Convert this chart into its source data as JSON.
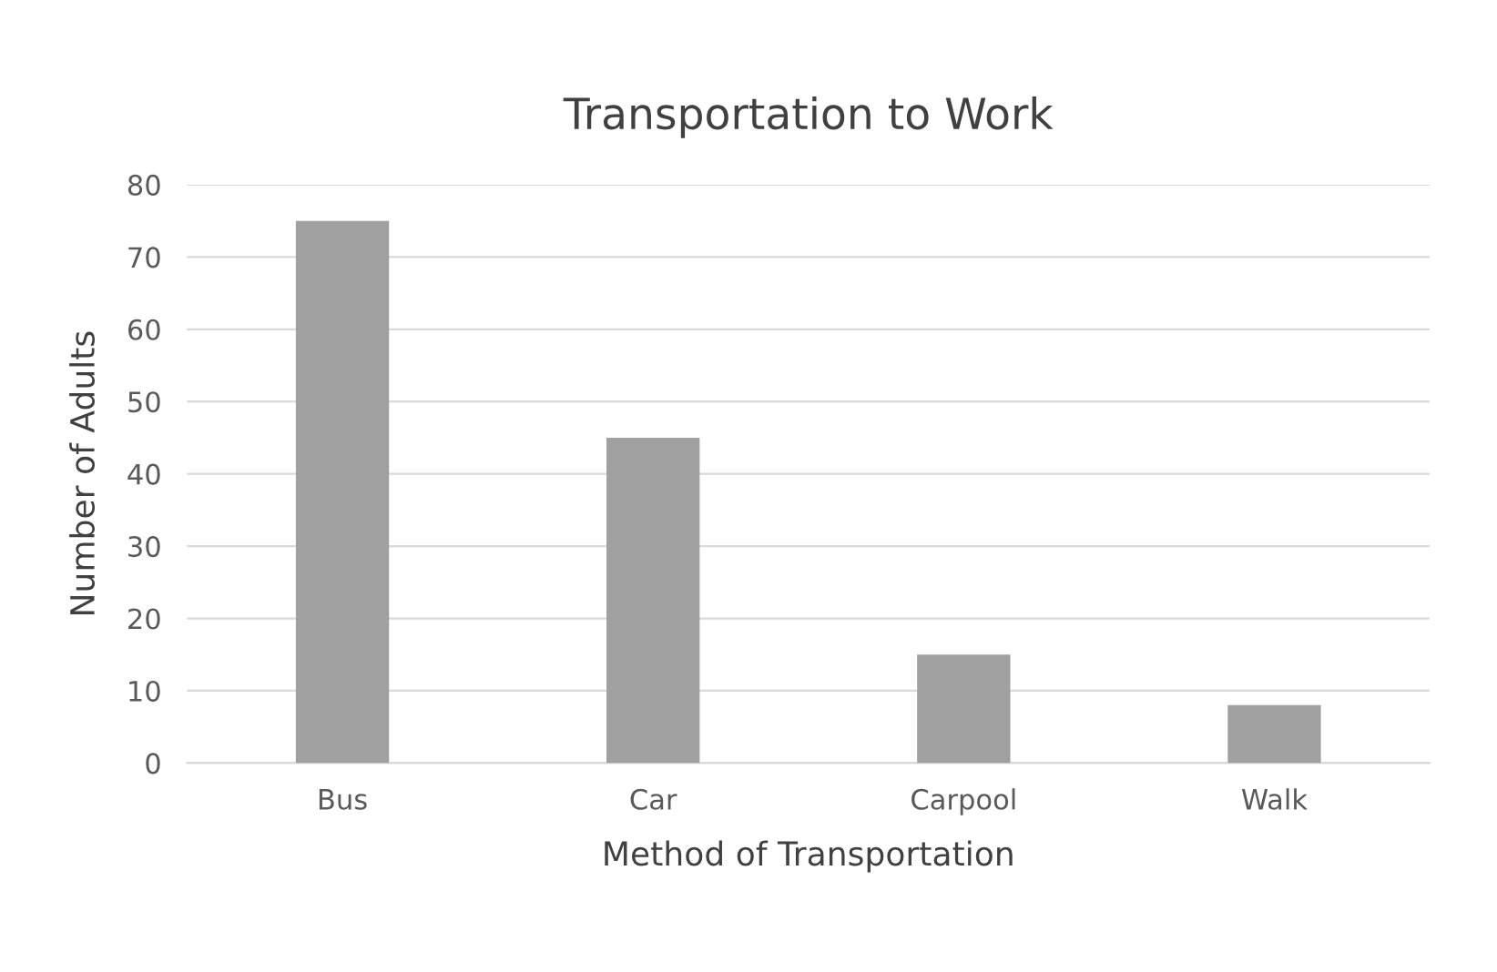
{
  "chart_data": {
    "type": "bar",
    "title": "Transportation to Work",
    "xlabel": "Method of Transportation",
    "ylabel": "Number of Adults",
    "categories": [
      "Bus",
      "Car",
      "Carpool",
      "Walk"
    ],
    "values": [
      75,
      45,
      15,
      8
    ],
    "color": "#a0a0a0",
    "ylim": [
      0,
      80
    ],
    "yticks": [
      0,
      10,
      20,
      30,
      40,
      50,
      60,
      70,
      80
    ],
    "grid": "y"
  }
}
